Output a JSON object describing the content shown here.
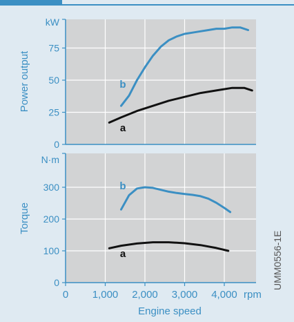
{
  "colors": {
    "background": "#dfeaf2",
    "panel": "#d2d3d4",
    "accent": "#3b8fc3",
    "curve_a": "#111111",
    "curve_b": "#3b8fc3",
    "grid": "#ffffff"
  },
  "x_axis": {
    "label": "Engine speed",
    "unit": "rpm",
    "range": [
      0,
      4800
    ],
    "ticks": [
      {
        "value": 0,
        "label": "0"
      },
      {
        "value": 1000,
        "label": "1,000"
      },
      {
        "value": 2000,
        "label": "2,000"
      },
      {
        "value": 3000,
        "label": "3,000"
      },
      {
        "value": 4000,
        "label": "4,000"
      }
    ]
  },
  "side_code": "UMM0556-1E",
  "chart_data": [
    {
      "type": "line",
      "ylabel": "Power output",
      "unit": "kW",
      "ylim": [
        0,
        100
      ],
      "yticks": [
        {
          "value": 0,
          "label": "0"
        },
        {
          "value": 25,
          "label": "25"
        },
        {
          "value": 50,
          "label": "50"
        },
        {
          "value": 75,
          "label": "75"
        }
      ],
      "grid": true,
      "series": [
        {
          "name": "b",
          "color": "#3b8fc3",
          "points": [
            [
              1400,
              30
            ],
            [
              1600,
              38
            ],
            [
              1800,
              50
            ],
            [
              2000,
              60
            ],
            [
              2200,
              69
            ],
            [
              2400,
              76
            ],
            [
              2600,
              81
            ],
            [
              2800,
              84
            ],
            [
              3000,
              86
            ],
            [
              3200,
              87
            ],
            [
              3400,
              88
            ],
            [
              3600,
              89
            ],
            [
              3800,
              90
            ],
            [
              4000,
              90
            ],
            [
              4200,
              91
            ],
            [
              4400,
              91
            ],
            [
              4600,
              89
            ]
          ]
        },
        {
          "name": "a",
          "color": "#111111",
          "points": [
            [
              1100,
              17
            ],
            [
              1400,
              21
            ],
            [
              1800,
              26
            ],
            [
              2200,
              30
            ],
            [
              2600,
              34
            ],
            [
              3000,
              37
            ],
            [
              3400,
              40
            ],
            [
              3800,
              42
            ],
            [
              4200,
              44
            ],
            [
              4500,
              44
            ],
            [
              4700,
              42
            ]
          ]
        }
      ]
    },
    {
      "type": "line",
      "ylabel": "Torque",
      "unit": "N·m",
      "ylim": [
        0,
        400
      ],
      "yticks": [
        {
          "value": 0,
          "label": "0"
        },
        {
          "value": 100,
          "label": "100"
        },
        {
          "value": 200,
          "label": "200"
        },
        {
          "value": 300,
          "label": "300"
        }
      ],
      "grid": true,
      "series": [
        {
          "name": "b",
          "color": "#3b8fc3",
          "points": [
            [
              1400,
              230
            ],
            [
              1600,
              275
            ],
            [
              1800,
              296
            ],
            [
              2000,
              300
            ],
            [
              2200,
              298
            ],
            [
              2400,
              292
            ],
            [
              2600,
              286
            ],
            [
              2800,
              282
            ],
            [
              3000,
              279
            ],
            [
              3200,
              276
            ],
            [
              3400,
              272
            ],
            [
              3600,
              264
            ],
            [
              3800,
              251
            ],
            [
              4000,
              235
            ],
            [
              4150,
              222
            ]
          ]
        },
        {
          "name": "a",
          "color": "#111111",
          "points": [
            [
              1100,
              108
            ],
            [
              1400,
              116
            ],
            [
              1800,
              123
            ],
            [
              2200,
              127
            ],
            [
              2600,
              127
            ],
            [
              3000,
              124
            ],
            [
              3400,
              118
            ],
            [
              3800,
              109
            ],
            [
              4100,
              100
            ]
          ]
        }
      ]
    }
  ]
}
